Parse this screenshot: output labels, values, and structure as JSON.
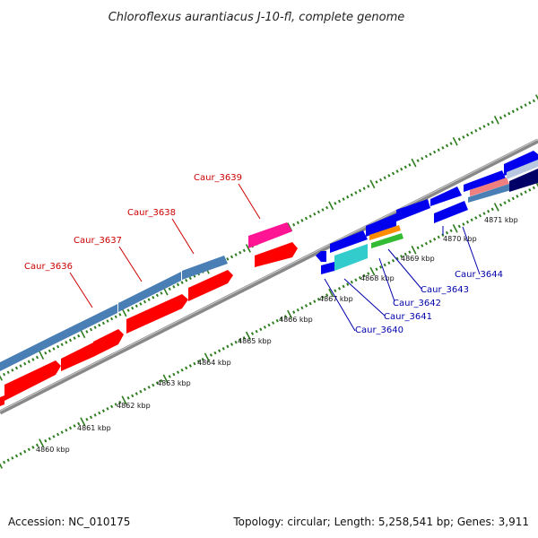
{
  "title": "Chloroflexus aurantiacus J-10-fl, complete genome",
  "accession": "Accession: NC_010175",
  "summary": "Topology: circular; Length: 5,258,541 bp; Genes: 3,911",
  "colors": {
    "backbone": "#888888",
    "tick": "#2e7d1e",
    "forward_cds": "#4a7fb5",
    "reverse_cds": "#ff0000",
    "feature_magenta": "#ff1493",
    "feature_blue": "#0000ee",
    "feature_cyan": "#33cccc",
    "feature_orange": "#ff8c00",
    "feature_green": "#33bb33",
    "feature_pink": "#f08080",
    "feature_navy": "#000066",
    "label_red": "#cc0000",
    "label_blue": "#0000aa"
  },
  "kbp_labels": [
    "4860 kbp",
    "4861 kbp",
    "4862 kbp",
    "4863 kbp",
    "4864 kbp",
    "4865 kbp",
    "4866 kbp",
    "4867 kbp",
    "4868 kbp",
    "4869 kbp",
    "4870 kbp",
    "4871 kbp"
  ],
  "gene_labels_red": [
    "Caur_3636",
    "Caur_3637",
    "Caur_3638",
    "Caur_3639"
  ],
  "gene_labels_blue": [
    "Caur_3640",
    "Caur_3641",
    "Caur_3642",
    "Caur_3643",
    "Caur_3644"
  ]
}
